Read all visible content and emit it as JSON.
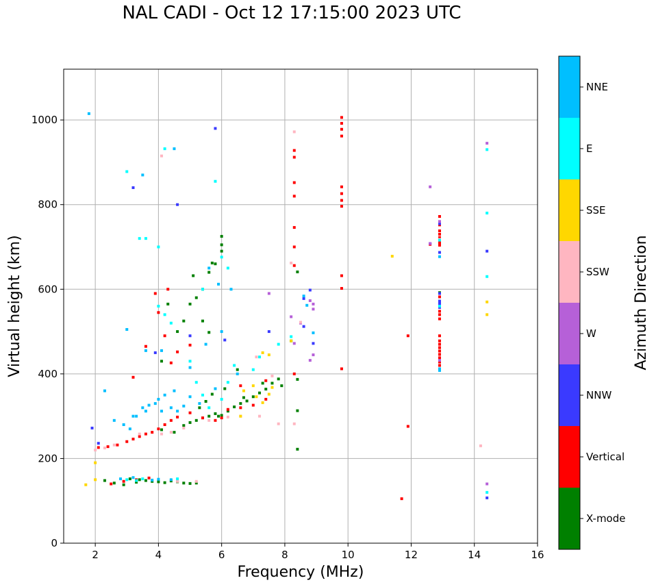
{
  "chart_data": {
    "type": "scatter",
    "title": "NAL CADI - Oct 12 17:15:00 2023 UTC",
    "xlabel": "Frequency (MHz)",
    "ylabel": "Virtual height (km)",
    "xlim": [
      1,
      16
    ],
    "ylim": [
      0,
      1120
    ],
    "xticks": [
      2,
      4,
      6,
      8,
      10,
      12,
      14,
      16
    ],
    "yticks": [
      0,
      200,
      400,
      600,
      800,
      1000
    ],
    "grid": true,
    "colorbar": {
      "label": "Azimuth Direction",
      "categories": [
        {
          "name": "X-mode",
          "color": "#008000"
        },
        {
          "name": "Vertical",
          "color": "#ff0000"
        },
        {
          "name": "NNW",
          "color": "#3a3aff"
        },
        {
          "name": "W",
          "color": "#b660d8"
        },
        {
          "name": "SSW",
          "color": "#ffb6c1"
        },
        {
          "name": "SSE",
          "color": "#ffd700"
        },
        {
          "name": "E",
          "color": "#00ffff"
        },
        {
          "name": "NNE",
          "color": "#00bfff"
        }
      ]
    },
    "series": [
      {
        "name": "X-mode",
        "points": [
          [
            3.4,
            150
          ],
          [
            3.6,
            148
          ],
          [
            3.8,
            146
          ],
          [
            4.0,
            145
          ],
          [
            4.2,
            143
          ],
          [
            4.4,
            147
          ],
          [
            4.6,
            145
          ],
          [
            4.8,
            142
          ],
          [
            5.0,
            141
          ],
          [
            5.2,
            142
          ],
          [
            3.1,
            152
          ],
          [
            3.3,
            144
          ],
          [
            2.3,
            148
          ],
          [
            2.6,
            142
          ],
          [
            2.9,
            138
          ],
          [
            4.1,
            268
          ],
          [
            4.5,
            262
          ],
          [
            4.8,
            278
          ],
          [
            5.0,
            285
          ],
          [
            5.2,
            290
          ],
          [
            5.4,
            296
          ],
          [
            5.6,
            300
          ],
          [
            5.8,
            306
          ],
          [
            6.0,
            302
          ],
          [
            6.2,
            312
          ],
          [
            6.4,
            322
          ],
          [
            6.6,
            330
          ],
          [
            6.8,
            336
          ],
          [
            7.0,
            346
          ],
          [
            7.2,
            355
          ],
          [
            7.4,
            364
          ],
          [
            7.6,
            378
          ],
          [
            7.8,
            388
          ],
          [
            5.3,
            320
          ],
          [
            5.5,
            335
          ],
          [
            5.7,
            352
          ],
          [
            5.9,
            300
          ],
          [
            6.1,
            365
          ],
          [
            6.5,
            410
          ],
          [
            5.6,
            498
          ],
          [
            5.4,
            525
          ],
          [
            5.0,
            565
          ],
          [
            5.4,
            600
          ],
          [
            5.6,
            640
          ],
          [
            5.8,
            660
          ],
          [
            6.0,
            705
          ],
          [
            6.0,
            725
          ],
          [
            4.1,
            430
          ],
          [
            4.6,
            500
          ],
          [
            4.3,
            565
          ],
          [
            4.8,
            525
          ],
          [
            5.2,
            580
          ],
          [
            8.4,
            387
          ],
          [
            8.4,
            313
          ],
          [
            8.4,
            222
          ],
          [
            8.4,
            641
          ],
          [
            8.2,
            478
          ],
          [
            12.9,
            592
          ],
          [
            7.9,
            372
          ],
          [
            7.3,
            378
          ],
          [
            6.7,
            344
          ],
          [
            5.1,
            632
          ],
          [
            5.7,
            662
          ],
          [
            6.0,
            690
          ]
        ]
      },
      {
        "name": "Vertical",
        "points": [
          [
            2.1,
            226
          ],
          [
            2.4,
            228
          ],
          [
            2.7,
            232
          ],
          [
            3.0,
            240
          ],
          [
            3.2,
            246
          ],
          [
            3.4,
            252
          ],
          [
            3.6,
            258
          ],
          [
            3.8,
            262
          ],
          [
            4.0,
            270
          ],
          [
            4.2,
            280
          ],
          [
            4.4,
            290
          ],
          [
            4.6,
            298
          ],
          [
            5.0,
            308
          ],
          [
            5.4,
            296
          ],
          [
            5.8,
            290
          ],
          [
            6.2,
            316
          ],
          [
            6.6,
            320
          ],
          [
            7.0,
            326
          ],
          [
            7.4,
            340
          ],
          [
            3.2,
            392
          ],
          [
            3.6,
            465
          ],
          [
            4.0,
            545
          ],
          [
            4.3,
            600
          ],
          [
            4.6,
            452
          ],
          [
            4.4,
            426
          ],
          [
            4.2,
            490
          ],
          [
            3.9,
            590
          ],
          [
            5.0,
            468
          ],
          [
            6.0,
            296
          ],
          [
            6.6,
            372
          ],
          [
            7.4,
            384
          ],
          [
            2.5,
            140
          ],
          [
            2.9,
            146
          ],
          [
            3.3,
            150
          ],
          [
            3.7,
            154
          ],
          [
            8.3,
            928
          ],
          [
            8.3,
            912
          ],
          [
            8.3,
            852
          ],
          [
            8.3,
            820
          ],
          [
            8.3,
            746
          ],
          [
            8.3,
            700
          ],
          [
            8.3,
            656
          ],
          [
            8.3,
            400
          ],
          [
            9.8,
            1006
          ],
          [
            9.8,
            992
          ],
          [
            9.8,
            978
          ],
          [
            9.8,
            962
          ],
          [
            9.8,
            842
          ],
          [
            9.8,
            826
          ],
          [
            9.8,
            810
          ],
          [
            9.8,
            796
          ],
          [
            9.8,
            632
          ],
          [
            9.8,
            602
          ],
          [
            9.8,
            412
          ],
          [
            11.9,
            490
          ],
          [
            11.9,
            276
          ],
          [
            11.7,
            105
          ],
          [
            12.9,
            772
          ],
          [
            12.9,
            752
          ],
          [
            12.9,
            738
          ],
          [
            12.9,
            730
          ],
          [
            12.9,
            722
          ],
          [
            12.9,
            718
          ],
          [
            12.9,
            710
          ],
          [
            12.9,
            704
          ],
          [
            12.9,
            582
          ],
          [
            12.9,
            548
          ],
          [
            12.9,
            540
          ],
          [
            12.9,
            530
          ],
          [
            12.9,
            490
          ],
          [
            12.9,
            478
          ],
          [
            12.9,
            470
          ],
          [
            12.9,
            462
          ],
          [
            12.9,
            454
          ],
          [
            12.9,
            446
          ],
          [
            12.9,
            438
          ],
          [
            12.9,
            428
          ],
          [
            12.9,
            420
          ],
          [
            12.9,
            410
          ],
          [
            12.6,
            706
          ]
        ]
      },
      {
        "name": "NNW",
        "points": [
          [
            1.9,
            272
          ],
          [
            2.1,
            236
          ],
          [
            3.2,
            840
          ],
          [
            4.6,
            800
          ],
          [
            5.8,
            980
          ],
          [
            8.6,
            578
          ],
          [
            8.8,
            598
          ],
          [
            8.6,
            512
          ],
          [
            8.9,
            472
          ],
          [
            7.5,
            500
          ],
          [
            12.6,
            708
          ],
          [
            12.9,
            760
          ],
          [
            12.9,
            755
          ],
          [
            12.9,
            687
          ],
          [
            12.9,
            590
          ],
          [
            12.9,
            572
          ],
          [
            12.9,
            566
          ],
          [
            12.9,
            557
          ],
          [
            14.4,
            690
          ],
          [
            14.4,
            107
          ],
          [
            3.9,
            450
          ],
          [
            5.0,
            490
          ],
          [
            6.1,
            480
          ]
        ]
      },
      {
        "name": "W",
        "points": [
          [
            8.8,
            573
          ],
          [
            8.9,
            565
          ],
          [
            8.9,
            553
          ],
          [
            8.8,
            432
          ],
          [
            8.5,
            520
          ],
          [
            8.9,
            445
          ],
          [
            12.6,
            842
          ],
          [
            12.6,
            708
          ],
          [
            12.9,
            760
          ],
          [
            12.9,
            432
          ],
          [
            14.4,
            945
          ],
          [
            14.4,
            140
          ],
          [
            7.5,
            590
          ],
          [
            8.2,
            535
          ],
          [
            8.3,
            472
          ]
        ]
      },
      {
        "name": "SSW",
        "points": [
          [
            2.0,
            220
          ],
          [
            2.3,
            225
          ],
          [
            2.6,
            232
          ],
          [
            3.4,
            258
          ],
          [
            4.1,
            258
          ],
          [
            4.4,
            262
          ],
          [
            4.8,
            272
          ],
          [
            5.6,
            290
          ],
          [
            6.2,
            298
          ],
          [
            6.6,
            300
          ],
          [
            7.2,
            300
          ],
          [
            7.8,
            282
          ],
          [
            8.3,
            282
          ],
          [
            8.3,
            972
          ],
          [
            8.2,
            662
          ],
          [
            8.5,
            522
          ],
          [
            4.1,
            915
          ],
          [
            12.9,
            718
          ],
          [
            14.2,
            230
          ],
          [
            7.6,
            395
          ],
          [
            7.1,
            440
          ],
          [
            4.6,
            146
          ],
          [
            5.2,
            146
          ]
        ]
      },
      {
        "name": "SSE",
        "points": [
          [
            2.0,
            190
          ],
          [
            1.7,
            138
          ],
          [
            2.0,
            150
          ],
          [
            6.7,
            360
          ],
          [
            7.1,
            346
          ],
          [
            7.3,
            332
          ],
          [
            7.5,
            352
          ],
          [
            7.6,
            368
          ],
          [
            7.0,
            372
          ],
          [
            7.3,
            450
          ],
          [
            7.5,
            445
          ],
          [
            8.2,
            478
          ],
          [
            11.4,
            678
          ],
          [
            14.4,
            570
          ],
          [
            14.4,
            540
          ],
          [
            6.6,
            300
          ]
        ]
      },
      {
        "name": "E",
        "points": [
          [
            3.0,
            878
          ],
          [
            3.4,
            720
          ],
          [
            3.6,
            720
          ],
          [
            4.0,
            700
          ],
          [
            4.2,
            932
          ],
          [
            5.8,
            855
          ],
          [
            6.0,
            676
          ],
          [
            6.2,
            650
          ],
          [
            4.0,
            560
          ],
          [
            4.4,
            520
          ],
          [
            4.2,
            540
          ],
          [
            5.4,
            600
          ],
          [
            5.0,
            430
          ],
          [
            5.2,
            380
          ],
          [
            5.4,
            350
          ],
          [
            5.6,
            320
          ],
          [
            6.0,
            340
          ],
          [
            6.2,
            380
          ],
          [
            6.4,
            420
          ],
          [
            7.0,
            410
          ],
          [
            7.2,
            440
          ],
          [
            7.8,
            470
          ],
          [
            8.2,
            488
          ],
          [
            12.9,
            716
          ],
          [
            12.9,
            560
          ],
          [
            14.4,
            930
          ],
          [
            14.4,
            780
          ],
          [
            14.4,
            630
          ],
          [
            14.4,
            120
          ],
          [
            3.0,
            150
          ],
          [
            3.3,
            148
          ],
          [
            3.5,
            152
          ],
          [
            4.6,
            152
          ]
        ]
      },
      {
        "name": "NNE",
        "points": [
          [
            1.8,
            1015
          ],
          [
            3.5,
            870
          ],
          [
            4.5,
            932
          ],
          [
            5.6,
            650
          ],
          [
            6.3,
            600
          ],
          [
            5.9,
            612
          ],
          [
            3.1,
            270
          ],
          [
            3.3,
            300
          ],
          [
            3.5,
            320
          ],
          [
            3.7,
            326
          ],
          [
            3.9,
            330
          ],
          [
            4.0,
            340
          ],
          [
            4.2,
            350
          ],
          [
            4.4,
            320
          ],
          [
            4.6,
            312
          ],
          [
            4.8,
            324
          ],
          [
            2.3,
            360
          ],
          [
            2.6,
            290
          ],
          [
            2.9,
            280
          ],
          [
            3.2,
            300
          ],
          [
            3.6,
            312
          ],
          [
            4.1,
            312
          ],
          [
            4.5,
            360
          ],
          [
            5.0,
            346
          ],
          [
            5.3,
            330
          ],
          [
            5.8,
            365
          ],
          [
            6.5,
            400
          ],
          [
            3.0,
            505
          ],
          [
            3.6,
            455
          ],
          [
            4.1,
            455
          ],
          [
            5.5,
            470
          ],
          [
            5.0,
            415
          ],
          [
            6.0,
            500
          ],
          [
            12.9,
            677
          ],
          [
            12.9,
            412
          ],
          [
            12.9,
            408
          ],
          [
            8.9,
            497
          ],
          [
            8.6,
            584
          ],
          [
            8.7,
            562
          ],
          [
            2.8,
            152
          ],
          [
            3.2,
            155
          ],
          [
            3.8,
            149
          ],
          [
            4.0,
            151
          ],
          [
            4.4,
            150
          ]
        ]
      }
    ]
  }
}
